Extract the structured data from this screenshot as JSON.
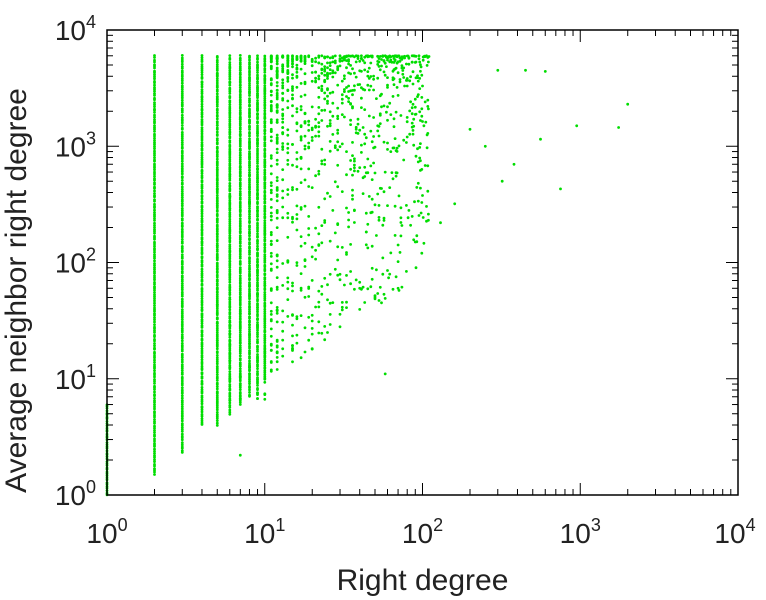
{
  "chart_data": {
    "type": "scatter",
    "xlabel": "Right degree",
    "ylabel": "Average neighbor right degree",
    "xscale": "log",
    "yscale": "log",
    "xlim": [
      1,
      10000
    ],
    "ylim": [
      1,
      10000
    ],
    "x_ticks": [
      {
        "base": "10",
        "exp": "0"
      },
      {
        "base": "10",
        "exp": "1"
      },
      {
        "base": "10",
        "exp": "2"
      },
      {
        "base": "10",
        "exp": "3"
      },
      {
        "base": "10",
        "exp": "4"
      }
    ],
    "y_ticks": [
      {
        "base": "10",
        "exp": "0"
      },
      {
        "base": "10",
        "exp": "1"
      },
      {
        "base": "10",
        "exp": "2"
      },
      {
        "base": "10",
        "exp": "3"
      },
      {
        "base": "10",
        "exp": "4"
      }
    ],
    "marker_color": "#00dd00",
    "grid": false,
    "series": [
      {
        "columns": [
          {
            "x": 1,
            "ymin": 1.0,
            "ymax": 6.0
          },
          {
            "x": 2,
            "ymin": 1.5,
            "ymax": 6000
          },
          {
            "x": 3,
            "ymin": 2.3,
            "ymax": 6000
          },
          {
            "x": 4,
            "ymin": 4.0,
            "ymax": 6000
          },
          {
            "x": 5,
            "ymin": 4.0,
            "ymax": 6000
          },
          {
            "x": 6,
            "ymin": 5.0,
            "ymax": 6000
          },
          {
            "x": 7,
            "ymin": 6.0,
            "ymax": 6000
          },
          {
            "x": 8,
            "ymin": 7.0,
            "ymax": 6000
          },
          {
            "x": 9,
            "ymin": 8.0,
            "ymax": 6000
          },
          {
            "x": 10,
            "ymin": 10,
            "ymax": 6000
          }
        ],
        "points": [
          {
            "x": 7,
            "y": 2.2
          },
          {
            "x": 58,
            "y": 11
          },
          {
            "x": 560,
            "y": 1150
          },
          {
            "x": 950,
            "y": 1500
          },
          {
            "x": 1750,
            "y": 1450
          },
          {
            "x": 2000,
            "y": 2300
          },
          {
            "x": 750,
            "y": 430
          },
          {
            "x": 450,
            "y": 4500
          },
          {
            "x": 300,
            "y": 4500
          },
          {
            "x": 600,
            "y": 4400
          },
          {
            "x": 380,
            "y": 700
          },
          {
            "x": 320,
            "y": 500
          },
          {
            "x": 250,
            "y": 1000
          },
          {
            "x": 200,
            "y": 1400
          },
          {
            "x": 160,
            "y": 320
          },
          {
            "x": 130,
            "y": 220
          },
          {
            "x": 70,
            "y": 60
          },
          {
            "x": 55,
            "y": 45
          },
          {
            "x": 20,
            "y": 18
          },
          {
            "x": 15,
            "y": 14
          },
          {
            "x": 12,
            "y": 12
          },
          {
            "x": 18,
            "y": 17
          },
          {
            "x": 25,
            "y": 25
          },
          {
            "x": 30,
            "y": 28
          },
          {
            "x": 40,
            "y": 60
          },
          {
            "x": 90,
            "y": 150
          },
          {
            "x": 100,
            "y": 3300
          },
          {
            "x": 40,
            "y": 3400
          },
          {
            "x": 60,
            "y": 3350
          },
          {
            "x": 80,
            "y": 3300
          }
        ]
      }
    ]
  }
}
